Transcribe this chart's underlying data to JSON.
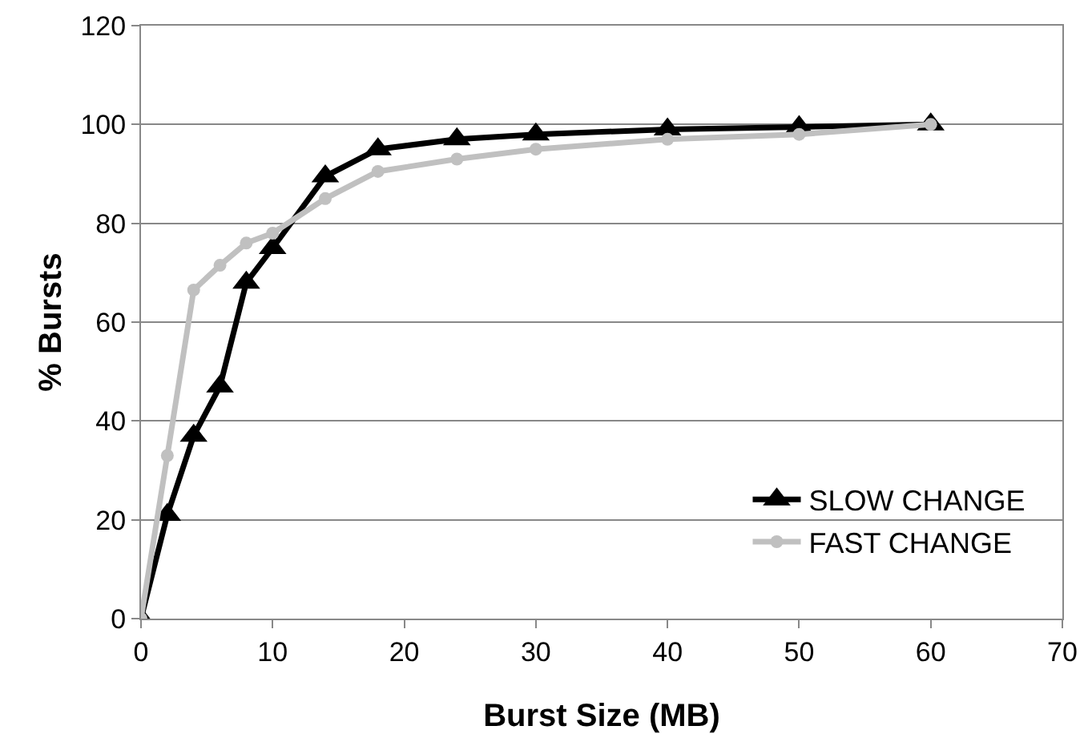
{
  "chart_data": {
    "type": "line",
    "xlabel": "Burst Size (MB)",
    "ylabel": "% Bursts",
    "x": [
      0,
      2,
      4,
      6,
      8,
      10,
      14,
      18,
      24,
      30,
      40,
      50,
      60
    ],
    "series": [
      {
        "name": "SLOW CHANGE",
        "color": "#000000",
        "marker": "triangle",
        "values": [
          0,
          21,
          37,
          47,
          68,
          75,
          89.5,
          95,
          97,
          98,
          99,
          99.5,
          100
        ]
      },
      {
        "name": "FAST CHANGE",
        "color": "#c0c0c0",
        "marker": "circle",
        "values": [
          0,
          33,
          66.5,
          71.5,
          76,
          78,
          85,
          90.5,
          93,
          95,
          97,
          98,
          100
        ]
      }
    ],
    "xlim": [
      0,
      70
    ],
    "xticks": [
      0,
      10,
      20,
      30,
      40,
      50,
      60,
      70
    ],
    "ylim": [
      0,
      120
    ],
    "yticks": [
      0,
      20,
      40,
      60,
      80,
      100,
      120
    ],
    "grid": "y",
    "legend": "bottom right",
    "line_style": "solid"
  }
}
